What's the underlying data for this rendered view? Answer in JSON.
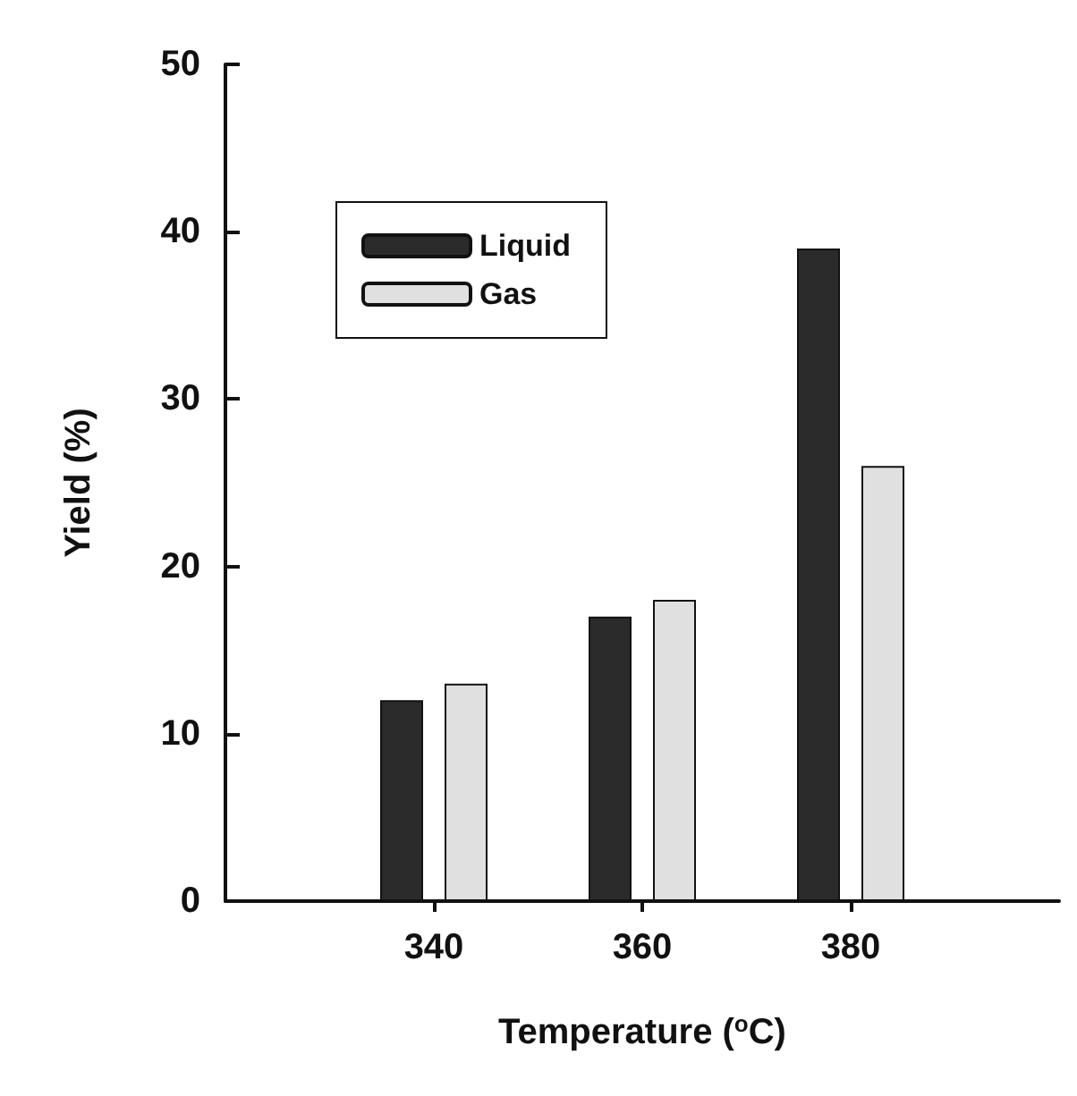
{
  "chart_data": {
    "type": "bar",
    "xlabel": "Temperature ($^{o}$C)",
    "ylabel": "Yield (%)",
    "x": [
      340,
      360,
      380
    ],
    "xlim": [
      320,
      400
    ],
    "xticks": [
      340,
      360,
      380
    ],
    "ylim": [
      0,
      50
    ],
    "yticks": [
      0,
      10,
      20,
      30,
      40,
      50
    ],
    "legend": "top left",
    "grid": false,
    "series": [
      {
        "name": "Liquid",
        "color": "#2b2b2b",
        "values": [
          12,
          17,
          39
        ]
      },
      {
        "name": "Gas",
        "color": "#e0e0e0",
        "values": [
          13,
          18,
          26
        ]
      }
    ]
  }
}
